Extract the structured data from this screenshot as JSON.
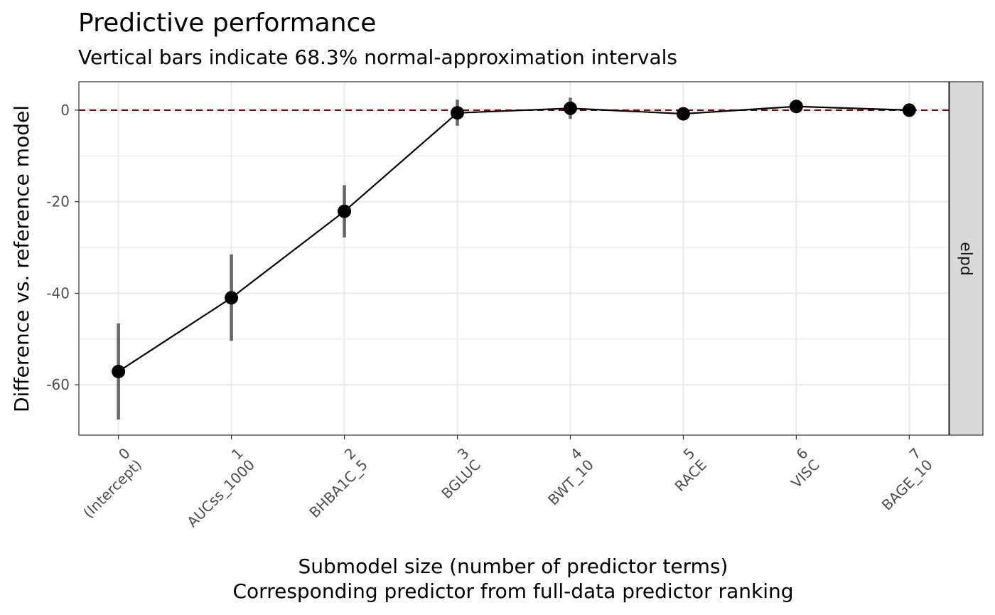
{
  "chart_data": {
    "type": "line",
    "title": "Predictive performance",
    "subtitle": "Vertical bars indicate 68.3% normal-approximation intervals",
    "xlabel_line1": "Submodel size (number of predictor terms)",
    "xlabel_line2": "Corresponding predictor from full-data predictor ranking",
    "ylabel": "Difference vs. reference model",
    "facet_label": "elpd",
    "x": [
      0,
      1,
      2,
      3,
      4,
      5,
      6,
      7
    ],
    "x_tick_numbers": [
      "0",
      "1",
      "2",
      "3",
      "4",
      "5",
      "6",
      "7"
    ],
    "x_tick_predictors": [
      "(Intercept)",
      "AUCss_1000",
      "BHBA1C_5",
      "BGLUC",
      "BWT_10",
      "RACE",
      "VISC",
      "BAGE_10"
    ],
    "series": [
      {
        "values": [
          -57.1,
          -41.0,
          -22.1,
          -0.6,
          0.4,
          -0.8,
          0.8,
          0.0
        ],
        "lower": [
          -67.6,
          -50.4,
          -27.8,
          -3.4,
          -1.9,
          -0.8,
          0.8,
          0.0
        ],
        "upper": [
          -46.6,
          -31.5,
          -16.4,
          2.3,
          2.7,
          -0.8,
          0.8,
          0.0
        ]
      }
    ],
    "reference_line": {
      "y": 0,
      "style": "dashed",
      "color": "#8b0000"
    },
    "y_ticks": [
      0,
      -20,
      -40,
      -60
    ],
    "ylim": [
      -71,
      6.2
    ],
    "xlim": [
      -0.35,
      7.35
    ],
    "grid": true,
    "colors": {
      "line": "#000000",
      "point": "#000000",
      "interval": "#666666",
      "grid": "#ebebeb",
      "strip": "#d9d9d9"
    }
  }
}
